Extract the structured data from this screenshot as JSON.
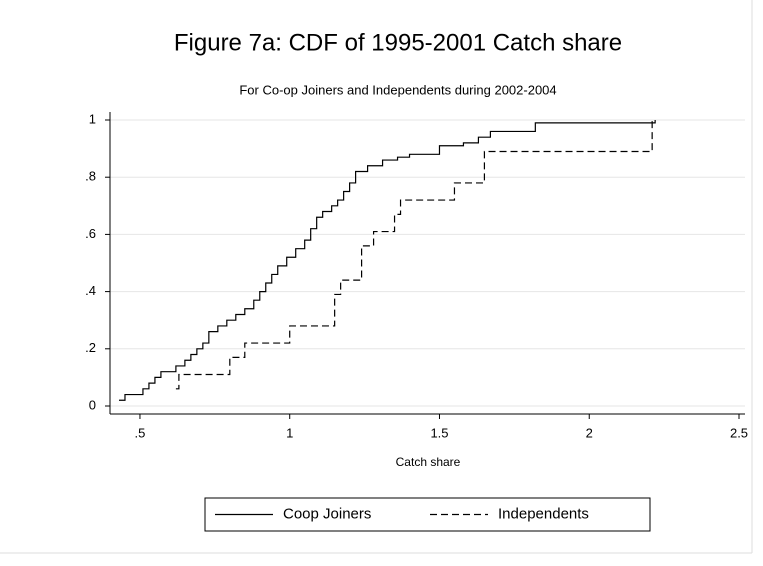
{
  "chart_data": {
    "type": "line",
    "drawstyle": "steps-post",
    "title": "Figure 7a: CDF of 1995-2001 Catch share",
    "subtitle": "For Co-op Joiners and Independents during 2002-2004",
    "xlabel": "Catch share",
    "xlim": [
      0.4,
      2.52
    ],
    "ylim": [
      -0.028,
      1.028
    ],
    "xticks": [
      {
        "value": 0.5,
        "label": ".5"
      },
      1,
      1.5,
      2,
      2.5
    ],
    "yticks": [
      0,
      {
        "value": 0.2,
        "label": ".2"
      },
      {
        "value": 0.4,
        "label": ".4"
      },
      {
        "value": 0.6,
        "label": ".6"
      },
      {
        "value": 0.8,
        "label": ".8"
      },
      1
    ],
    "grid": true,
    "legend": "bottom",
    "series": [
      {
        "name": "Coop Joiners",
        "color": "#000000",
        "dash": "solid",
        "x": [
          0.43,
          0.45,
          0.51,
          0.53,
          0.55,
          0.57,
          0.62,
          0.65,
          0.67,
          0.69,
          0.71,
          0.73,
          0.76,
          0.79,
          0.82,
          0.85,
          0.88,
          0.9,
          0.92,
          0.94,
          0.96,
          0.99,
          1.02,
          1.05,
          1.07,
          1.09,
          1.11,
          1.14,
          1.16,
          1.18,
          1.2,
          1.22,
          1.26,
          1.31,
          1.36,
          1.4,
          1.5,
          1.58,
          1.63,
          1.67,
          1.82,
          2.22
        ],
        "values": [
          0.02,
          0.04,
          0.06,
          0.08,
          0.1,
          0.12,
          0.14,
          0.16,
          0.18,
          0.2,
          0.22,
          0.26,
          0.28,
          0.3,
          0.32,
          0.34,
          0.37,
          0.4,
          0.43,
          0.46,
          0.49,
          0.52,
          0.55,
          0.58,
          0.62,
          0.66,
          0.68,
          0.7,
          0.72,
          0.75,
          0.78,
          0.82,
          0.84,
          0.86,
          0.87,
          0.88,
          0.91,
          0.92,
          0.94,
          0.96,
          0.99,
          1.0
        ]
      },
      {
        "name": "Independents",
        "color": "#000000",
        "dash": "dashed",
        "x": [
          0.62,
          0.63,
          0.8,
          0.85,
          1.0,
          1.15,
          1.17,
          1.24,
          1.28,
          1.35,
          1.37,
          1.55,
          1.65,
          2.21
        ],
        "values": [
          0.06,
          0.11,
          0.17,
          0.22,
          0.28,
          0.39,
          0.44,
          0.56,
          0.61,
          0.67,
          0.72,
          0.78,
          0.89,
          1.0
        ]
      }
    ]
  }
}
